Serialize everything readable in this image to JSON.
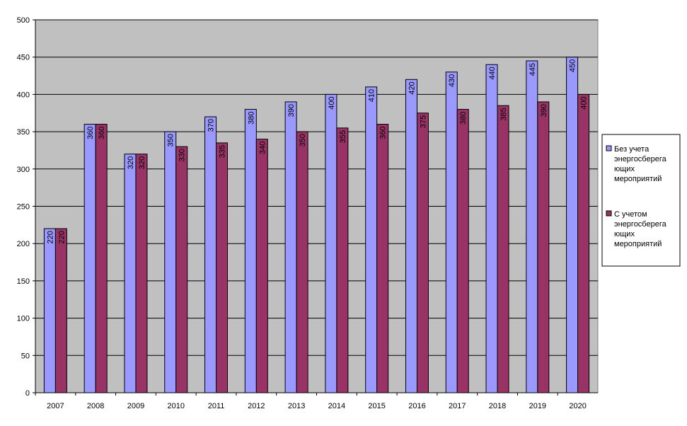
{
  "chart_data": {
    "type": "bar",
    "title": "",
    "xlabel": "",
    "ylabel": "",
    "categories": [
      "2007",
      "2008",
      "2009",
      "2010",
      "2011",
      "2012",
      "2013",
      "2014",
      "2015",
      "2016",
      "2017",
      "2018",
      "2019",
      "2020"
    ],
    "series": [
      {
        "name": "Без учета энергосберегающих мероприятий",
        "legend_lines": [
          "Без учета",
          "энергосберега",
          "ющих",
          "мероприятий"
        ],
        "color": "#9999ff",
        "values": [
          220,
          360,
          320,
          350,
          370,
          380,
          390,
          400,
          410,
          420,
          430,
          440,
          445,
          450
        ]
      },
      {
        "name": "С учетом энергосберегающих мероприятий",
        "legend_lines": [
          "С учетом",
          "энергосберега",
          "ющих",
          "мероприятий"
        ],
        "color": "#993366",
        "values": [
          220,
          360,
          320,
          330,
          335,
          340,
          350,
          355,
          360,
          375,
          380,
          385,
          390,
          400
        ]
      }
    ],
    "ylim": [
      0,
      500
    ],
    "yticks": [
      0,
      50,
      100,
      150,
      200,
      250,
      300,
      350,
      400,
      450,
      500
    ],
    "grid": true,
    "legend": "right",
    "plot_background": "#c0c0c0",
    "data_labels": true,
    "data_label_orientation": "vertical"
  }
}
